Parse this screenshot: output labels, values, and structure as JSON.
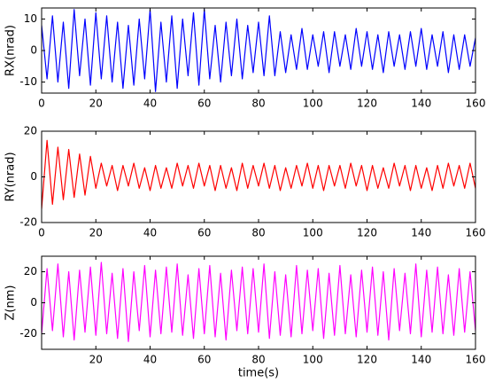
{
  "chart_data": [
    {
      "type": "line",
      "ylabel": "RX(nrad)",
      "x": [
        0,
        2,
        4,
        6,
        8,
        10,
        12,
        14,
        16,
        18,
        20,
        22,
        24,
        26,
        28,
        30,
        32,
        34,
        36,
        38,
        40,
        42,
        44,
        46,
        48,
        50,
        52,
        54,
        56,
        58,
        60,
        62,
        64,
        66,
        68,
        70,
        72,
        74,
        76,
        78,
        80,
        82,
        84,
        86,
        88,
        90,
        92,
        94,
        96,
        98,
        100,
        102,
        104,
        106,
        108,
        110,
        112,
        114,
        116,
        118,
        120,
        122,
        124,
        126,
        128,
        130,
        132,
        134,
        136,
        138,
        140,
        142,
        144,
        146,
        148,
        150,
        152,
        154,
        156,
        158,
        160
      ],
      "series": [
        {
          "color": "#0000ff",
          "values": [
            8,
            -9,
            11,
            -10,
            9,
            -12,
            13,
            -8,
            10,
            -11,
            12,
            -9,
            11,
            -10,
            9,
            -12,
            8,
            -11,
            10,
            -9,
            13,
            -13,
            9,
            -10,
            11,
            -12,
            10,
            -8,
            12,
            -11,
            13,
            -9,
            8,
            -10,
            9,
            -8,
            10,
            -9,
            8,
            -7,
            9,
            -8,
            11,
            -8,
            6,
            -7,
            5,
            -6,
            7,
            -6,
            5,
            -5,
            6,
            -7,
            6,
            -5,
            5,
            -6,
            7,
            -5,
            6,
            -6,
            5,
            -7,
            6,
            -5,
            5,
            -6,
            6,
            -5,
            7,
            -6,
            5,
            -5,
            6,
            -7,
            5,
            -6,
            5,
            -5,
            4
          ]
        }
      ],
      "xlim": [
        0,
        160
      ],
      "xticks": [
        0,
        20,
        40,
        60,
        80,
        100,
        120,
        140,
        160
      ],
      "ylim": [
        -13.5,
        13.5
      ],
      "yticks": [
        -10,
        0,
        10
      ]
    },
    {
      "type": "line",
      "ylabel": "RY(nrad)",
      "x": [
        0,
        2,
        4,
        6,
        8,
        10,
        12,
        14,
        16,
        18,
        20,
        22,
        24,
        26,
        28,
        30,
        32,
        34,
        36,
        38,
        40,
        42,
        44,
        46,
        48,
        50,
        52,
        54,
        56,
        58,
        60,
        62,
        64,
        66,
        68,
        70,
        72,
        74,
        76,
        78,
        80,
        82,
        84,
        86,
        88,
        90,
        92,
        94,
        96,
        98,
        100,
        102,
        104,
        106,
        108,
        110,
        112,
        114,
        116,
        118,
        120,
        122,
        124,
        126,
        128,
        130,
        132,
        134,
        136,
        138,
        140,
        142,
        144,
        146,
        148,
        150,
        152,
        154,
        156,
        158,
        160
      ],
      "series": [
        {
          "color": "#ff0000",
          "values": [
            -14,
            16,
            -12,
            13,
            -10,
            12,
            -9,
            10,
            -8,
            9,
            -5,
            6,
            -4,
            5,
            -6,
            5,
            -4,
            6,
            -5,
            4,
            -6,
            5,
            -5,
            4,
            -5,
            6,
            -4,
            5,
            -5,
            6,
            -4,
            5,
            -6,
            5,
            -5,
            4,
            -6,
            6,
            -5,
            5,
            -4,
            6,
            -5,
            5,
            -6,
            4,
            -5,
            5,
            -4,
            6,
            -5,
            5,
            -6,
            5,
            -4,
            5,
            -5,
            6,
            -4,
            5,
            -6,
            5,
            -5,
            4,
            -5,
            6,
            -4,
            5,
            -6,
            5,
            -5,
            4,
            -6,
            5,
            -5,
            6,
            -4,
            5,
            -5,
            6,
            -5
          ]
        }
      ],
      "xlim": [
        0,
        160
      ],
      "xticks": [
        0,
        20,
        40,
        60,
        80,
        100,
        120,
        140,
        160
      ],
      "ylim": [
        -20,
        20
      ],
      "yticks": [
        -20,
        0,
        20
      ]
    },
    {
      "type": "line",
      "ylabel": "Z(nm)",
      "xlabel": "time(s)",
      "x": [
        0,
        2,
        4,
        6,
        8,
        10,
        12,
        14,
        16,
        18,
        20,
        22,
        24,
        26,
        28,
        30,
        32,
        34,
        36,
        38,
        40,
        42,
        44,
        46,
        48,
        50,
        52,
        54,
        56,
        58,
        60,
        62,
        64,
        66,
        68,
        70,
        72,
        74,
        76,
        78,
        80,
        82,
        84,
        86,
        88,
        90,
        92,
        94,
        96,
        98,
        100,
        102,
        104,
        106,
        108,
        110,
        112,
        114,
        116,
        118,
        120,
        122,
        124,
        126,
        128,
        130,
        132,
        134,
        136,
        138,
        140,
        142,
        144,
        146,
        148,
        150,
        152,
        154,
        156,
        158,
        160
      ],
      "series": [
        {
          "color": "#ff00ff",
          "values": [
            -20,
            22,
            -18,
            25,
            -22,
            20,
            -24,
            21,
            -19,
            23,
            -21,
            26,
            -20,
            19,
            -23,
            22,
            -25,
            20,
            -18,
            24,
            -22,
            21,
            -20,
            23,
            -19,
            25,
            -21,
            18,
            -23,
            22,
            -20,
            24,
            -22,
            19,
            -24,
            21,
            -18,
            23,
            -20,
            22,
            -19,
            25,
            -23,
            20,
            -21,
            18,
            -22,
            24,
            -20,
            21,
            -18,
            22,
            -23,
            19,
            -21,
            24,
            -20,
            18,
            -22,
            21,
            -19,
            23,
            -21,
            20,
            -24,
            22,
            -18,
            19,
            -20,
            25,
            -22,
            21,
            -19,
            23,
            -20,
            18,
            -21,
            22,
            -19,
            20,
            -18
          ]
        }
      ],
      "xlim": [
        0,
        160
      ],
      "xticks": [
        20,
        40,
        60,
        80,
        100,
        120,
        140,
        160
      ],
      "ylim": [
        -30,
        30
      ],
      "yticks": [
        -20,
        0,
        20
      ]
    }
  ]
}
